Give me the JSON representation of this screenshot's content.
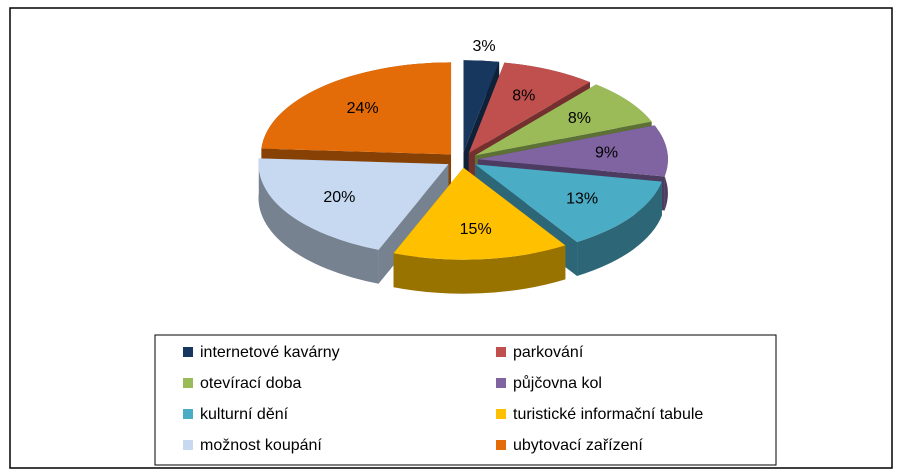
{
  "chart_data": {
    "type": "pie",
    "categories": [
      "internetové kavárny",
      "parkování",
      "otevírací doba",
      "půjčovna kol",
      "kulturní dění",
      "turistické informační tabule",
      "možnost koupání",
      "ubytovací zařízení"
    ],
    "values": [
      3,
      8,
      8,
      9,
      13,
      15,
      20,
      24
    ],
    "value_labels": [
      "3%",
      "8%",
      "8%",
      "9%",
      "13%",
      "15%",
      "20%",
      "24%"
    ],
    "colors": [
      "#17375e",
      "#c0504d",
      "#9bbb59",
      "#8064a2",
      "#4bacc6",
      "#ffc000",
      "#c6d9f1",
      "#e36c09"
    ],
    "legend": "bottom"
  }
}
